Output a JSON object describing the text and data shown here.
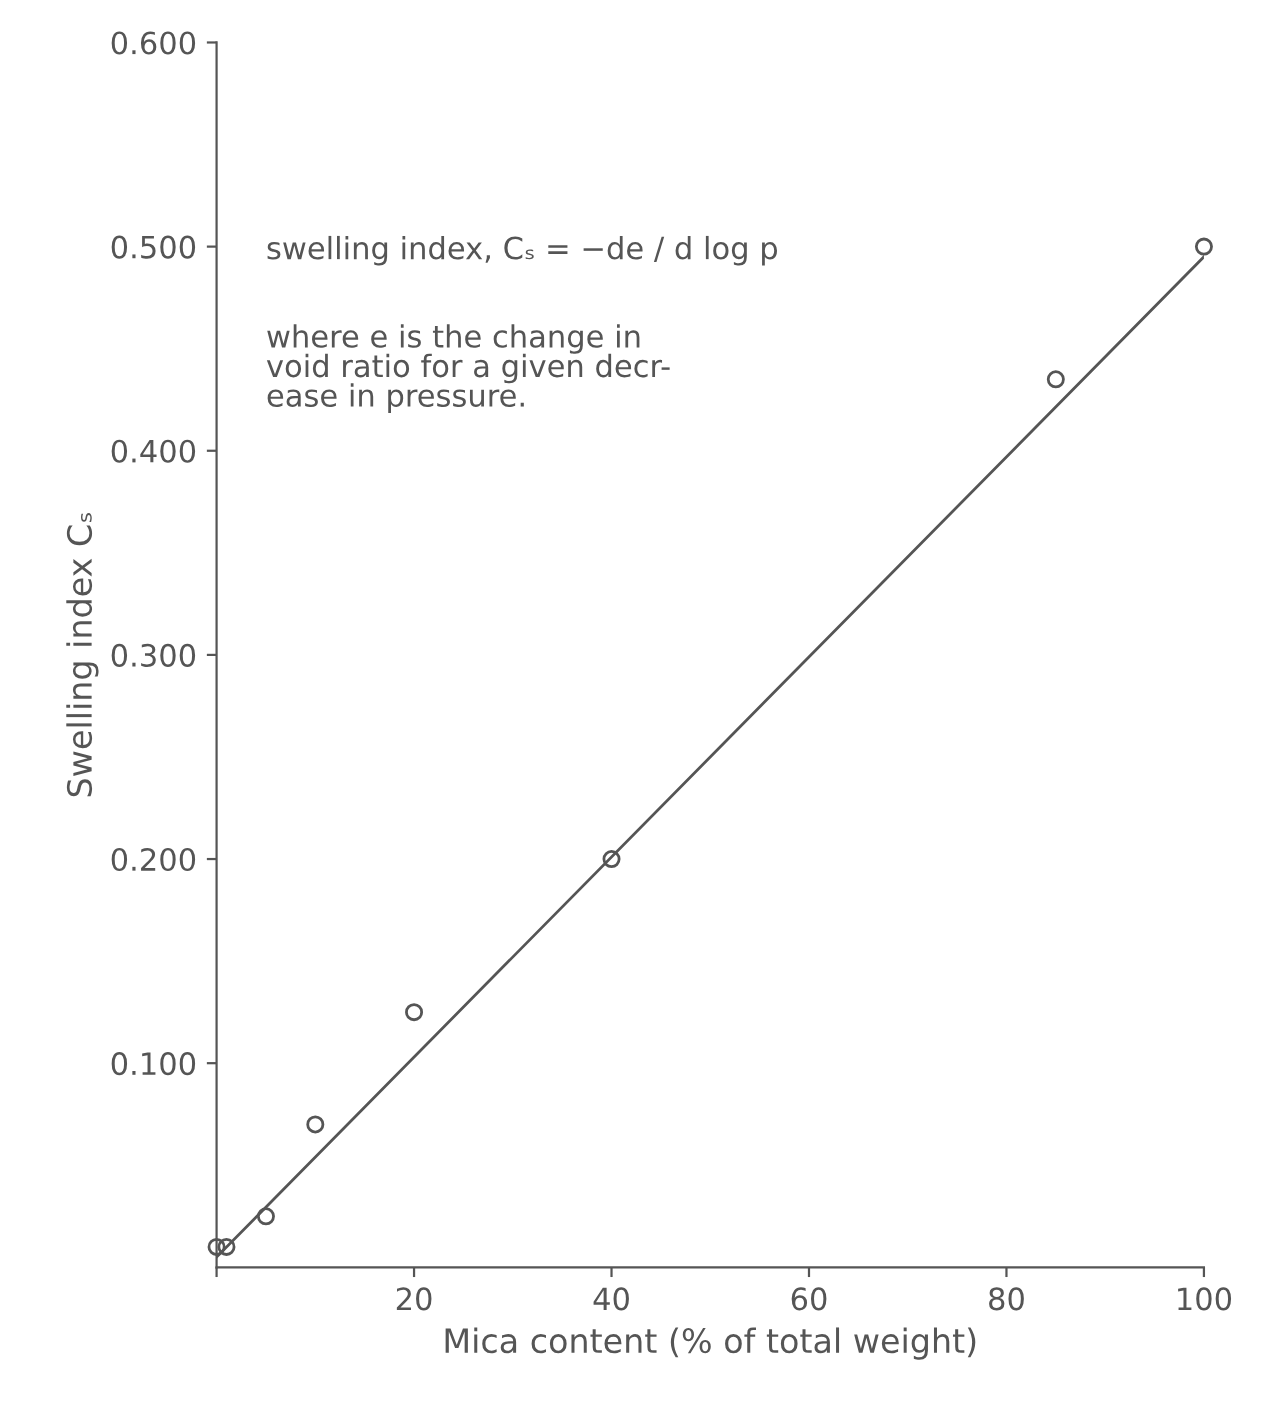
{
  "chart_data": {
    "type": "scatter",
    "xlabel": "Mica content (% of total weight)",
    "ylabel": "Swelling index Cₛ",
    "series": [
      {
        "color": "#555555",
        "marker": "circle",
        "x": [
          0,
          1,
          5,
          10,
          20,
          40,
          85,
          100
        ],
        "values": [
          0.01,
          0.01,
          0.025,
          0.07,
          0.125,
          0.2,
          0.435,
          0.5
        ]
      },
      {
        "type": "line",
        "color": "#555555",
        "line_style": "solid",
        "x": [
          0,
          100
        ],
        "values": [
          0.005,
          0.495
        ]
      }
    ],
    "xlim": [
      0,
      100
    ],
    "ylim": [
      0,
      0.6
    ],
    "xticks": [
      {
        "value": 0,
        "label": null
      },
      20,
      40,
      60,
      80,
      100
    ],
    "yticks": [
      {
        "value": 0.1,
        "label": "0.100"
      },
      {
        "value": 0.2,
        "label": "0.200"
      },
      {
        "value": 0.3,
        "label": "0.300"
      },
      {
        "value": 0.4,
        "label": "0.400"
      },
      {
        "value": 0.5,
        "label": "0.500"
      },
      {
        "value": 0.6,
        "label": "0.600"
      }
    ],
    "grid": false,
    "annotations": [
      "swelling index, Cₛ = −de / d log p",
      "where e is the change in\nvoid ratio for a given decr-\nease in pressure."
    ]
  }
}
